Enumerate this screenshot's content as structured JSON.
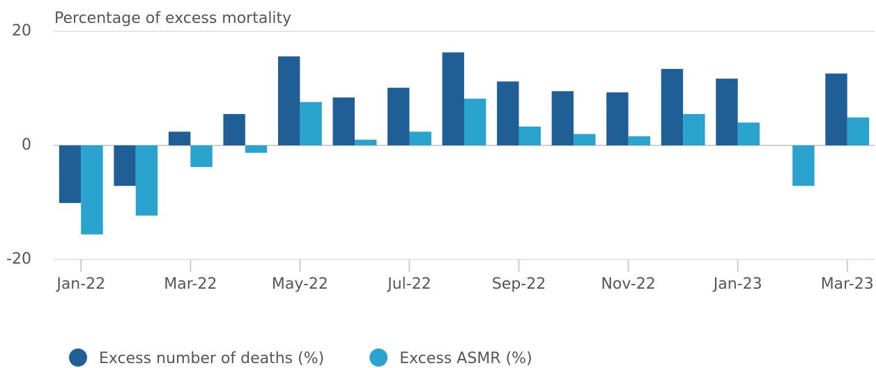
{
  "chart_data": {
    "type": "bar",
    "title": "Percentage of excess mortality",
    "categories": [
      "Jan-22",
      null,
      "Mar-22",
      null,
      "May-22",
      null,
      "Jul-22",
      null,
      "Sep-22",
      null,
      "Nov-22",
      null,
      "Jan-23",
      null,
      "Mar-23"
    ],
    "series": [
      {
        "name": "Excess number of deaths (%)",
        "color": "#1f5f96",
        "values": [
          -10.1,
          -7.1,
          2.4,
          5.5,
          15.6,
          8.4,
          10.1,
          16.3,
          11.2,
          9.5,
          9.3,
          13.4,
          11.7,
          0,
          12.6
        ]
      },
      {
        "name": "Excess ASMR (%)",
        "color": "#2ba3cf",
        "values": [
          -15.6,
          -12.3,
          -3.8,
          -1.3,
          7.6,
          1.0,
          2.4,
          8.2,
          3.3,
          2.0,
          1.6,
          5.5,
          4.0,
          -7.1,
          4.9
        ]
      }
    ],
    "ylim": [
      -20,
      20
    ],
    "yticks": [
      -20,
      0,
      20
    ],
    "grid": true
  }
}
